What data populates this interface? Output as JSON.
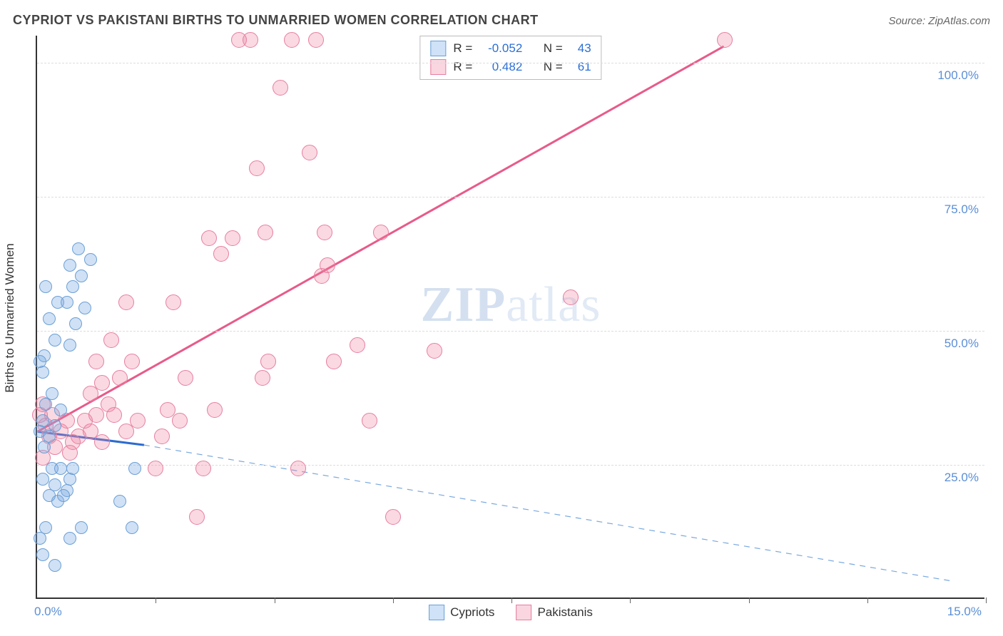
{
  "header": {
    "title": "CYPRIOT VS PAKISTANI BIRTHS TO UNMARRIED WOMEN CORRELATION CHART",
    "source": "Source: ZipAtlas.com"
  },
  "axes": {
    "y_title": "Births to Unmarried Women",
    "xlim": [
      0,
      16
    ],
    "ylim": [
      0,
      105
    ],
    "y_ticks": [
      25,
      50,
      75,
      100
    ],
    "y_tick_labels": [
      "25.0%",
      "50.0%",
      "75.0%",
      "100.0%"
    ],
    "x_tick_positions": [
      0,
      2,
      4,
      6,
      8,
      10,
      12,
      14,
      16
    ],
    "x_corner_label": "0.0%",
    "x_right_label": "15.0%",
    "grid_color": "#dddddd"
  },
  "watermark": {
    "zip": "ZIP",
    "atlas": "atlas"
  },
  "series": {
    "cypriots": {
      "label": "Cypriots",
      "fill": "rgba(120, 170, 225, 0.35)",
      "stroke": "#6b9fd6",
      "swatch_fill": "#cfe2f7",
      "swatch_border": "#6b9fd6",
      "r_value": "-0.052",
      "n_value": "43",
      "marker_size": 18,
      "trend": {
        "x1": 0,
        "y1": 31,
        "x2": 1.8,
        "y2": 28.5,
        "color": "#2c6bd0",
        "width": 3
      },
      "trend_ext": {
        "x1": 1.8,
        "y1": 28.5,
        "x2": 15.5,
        "y2": 3,
        "color": "#7aa8de",
        "dash": "8 7",
        "width": 1.2
      },
      "points": [
        [
          0.05,
          11
        ],
        [
          0.1,
          8
        ],
        [
          0.15,
          13
        ],
        [
          0.2,
          19
        ],
        [
          0.1,
          22
        ],
        [
          0.25,
          24
        ],
        [
          0.12,
          28
        ],
        [
          0.35,
          18
        ],
        [
          0.3,
          21
        ],
        [
          0.4,
          24
        ],
        [
          0.5,
          20
        ],
        [
          0.55,
          22
        ],
        [
          0.45,
          19
        ],
        [
          0.6,
          24
        ],
        [
          0.05,
          31
        ],
        [
          0.1,
          33
        ],
        [
          0.2,
          30
        ],
        [
          0.3,
          32
        ],
        [
          0.15,
          36
        ],
        [
          0.25,
          38
        ],
        [
          0.4,
          35
        ],
        [
          0.12,
          45
        ],
        [
          0.3,
          48
        ],
        [
          0.2,
          52
        ],
        [
          0.35,
          55
        ],
        [
          0.15,
          58
        ],
        [
          0.5,
          55
        ],
        [
          0.6,
          58
        ],
        [
          0.55,
          62
        ],
        [
          0.75,
          60
        ],
        [
          0.7,
          65
        ],
        [
          0.9,
          63
        ],
        [
          0.8,
          54
        ],
        [
          0.65,
          51
        ],
        [
          0.55,
          47
        ],
        [
          0.05,
          44
        ],
        [
          0.1,
          42
        ],
        [
          0.3,
          6
        ],
        [
          0.55,
          11
        ],
        [
          0.75,
          13
        ],
        [
          1.6,
          13
        ],
        [
          1.4,
          18
        ],
        [
          1.65,
          24
        ]
      ]
    },
    "pakistanis": {
      "label": "Pakistanis",
      "fill": "rgba(240, 130, 160, 0.30)",
      "stroke": "#e77ea0",
      "swatch_fill": "#f9d6e0",
      "swatch_border": "#e77ea0",
      "r_value": "0.482",
      "n_value": "61",
      "marker_size": 22,
      "trend": {
        "x1": 0,
        "y1": 31,
        "x2": 11.6,
        "y2": 103,
        "color": "#e85a8a",
        "width": 3
      },
      "points": [
        [
          0.1,
          26
        ],
        [
          0.2,
          30
        ],
        [
          0.3,
          28
        ],
        [
          0.15,
          32
        ],
        [
          0.25,
          34
        ],
        [
          0.4,
          31
        ],
        [
          0.5,
          33
        ],
        [
          0.6,
          29
        ],
        [
          0.55,
          27
        ],
        [
          0.7,
          30
        ],
        [
          0.8,
          33
        ],
        [
          0.9,
          31
        ],
        [
          1.0,
          34
        ],
        [
          1.1,
          29
        ],
        [
          1.2,
          36
        ],
        [
          1.3,
          34
        ],
        [
          1.5,
          31
        ],
        [
          1.7,
          33
        ],
        [
          1.4,
          41
        ],
        [
          1.6,
          44
        ],
        [
          1.1,
          40
        ],
        [
          0.9,
          38
        ],
        [
          1.0,
          44
        ],
        [
          1.25,
          48
        ],
        [
          1.5,
          55
        ],
        [
          2.0,
          24
        ],
        [
          2.1,
          30
        ],
        [
          2.2,
          35
        ],
        [
          2.4,
          33
        ],
        [
          2.5,
          41
        ],
        [
          2.3,
          55
        ],
        [
          2.7,
          15
        ],
        [
          2.8,
          24
        ],
        [
          2.9,
          67
        ],
        [
          3.1,
          64
        ],
        [
          3.3,
          67
        ],
        [
          3.0,
          35
        ],
        [
          3.6,
          104
        ],
        [
          3.4,
          104
        ],
        [
          3.7,
          80
        ],
        [
          3.8,
          41
        ],
        [
          3.9,
          44
        ],
        [
          3.85,
          68
        ],
        [
          4.1,
          95
        ],
        [
          4.3,
          104
        ],
        [
          4.4,
          24
        ],
        [
          4.7,
          104
        ],
        [
          4.8,
          60
        ],
        [
          4.9,
          62
        ],
        [
          4.85,
          68
        ],
        [
          4.6,
          83
        ],
        [
          5.0,
          44
        ],
        [
          5.4,
          47
        ],
        [
          5.6,
          33
        ],
        [
          5.8,
          68
        ],
        [
          6.0,
          15
        ],
        [
          6.7,
          46
        ],
        [
          9.0,
          56
        ],
        [
          11.6,
          104
        ],
        [
          0.05,
          34
        ],
        [
          0.1,
          36
        ]
      ]
    }
  },
  "legend": {
    "r_prefix": "R =",
    "n_prefix": "N ="
  }
}
